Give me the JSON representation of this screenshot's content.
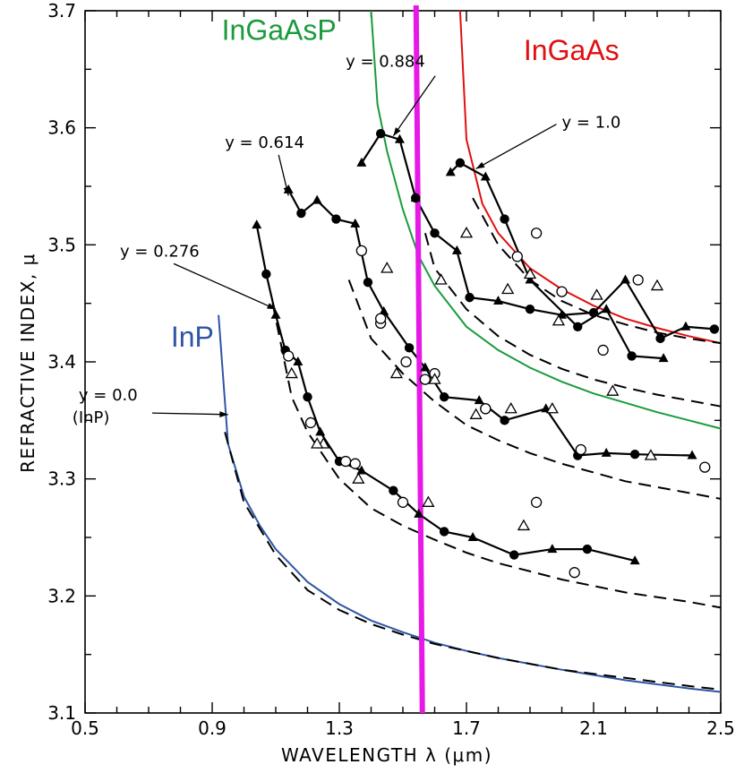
{
  "chart_data": {
    "type": "line",
    "xlabel": "WAVELENGTH λ (μm)",
    "ylabel": "REFRACTIVE INDEX, μ",
    "xlim": [
      0.5,
      2.5
    ],
    "ylim": [
      3.1,
      3.7
    ],
    "x_ticks": [
      "0.5",
      "0.9",
      "1.3",
      "1.7",
      "2.1",
      "2.5"
    ],
    "y_ticks": [
      "3.1",
      "3.2",
      "3.3",
      "3.4",
      "3.5",
      "3.6",
      "3.7"
    ],
    "grid": false,
    "colored_labels": [
      {
        "text": "InGaAsP",
        "color": "#1a9b3c"
      },
      {
        "text": "InGaAs",
        "color": "#e01010"
      },
      {
        "text": "InP",
        "color": "#2f55a4"
      }
    ],
    "annotations": [
      {
        "text": "y = 0.884",
        "x": 1.32,
        "y": 3.652
      },
      {
        "text": "y = 1.0",
        "x": 2.0,
        "y": 3.6
      },
      {
        "text": "y = 0.614",
        "x": 0.94,
        "y": 3.583
      },
      {
        "text": "y = 0.276",
        "x": 0.61,
        "y": 3.49
      },
      {
        "text": "y = 0.0",
        "x": 0.48,
        "y": 3.367
      },
      {
        "text": "(InP)",
        "x": 0.46,
        "y": 3.348
      }
    ],
    "vertical_marker": {
      "x": 1.55,
      "color": "#e619e6"
    },
    "series": [
      {
        "name": "InGaAs",
        "style": "solid",
        "color": "#e01010",
        "x": [
          1.68,
          1.7,
          1.75,
          1.8,
          1.9,
          2.0,
          2.1,
          2.2,
          2.3,
          2.4,
          2.5
        ],
        "y": [
          3.7,
          3.59,
          3.535,
          3.51,
          3.48,
          3.462,
          3.448,
          3.437,
          3.429,
          3.422,
          3.416
        ]
      },
      {
        "name": "InGaAsP",
        "style": "solid",
        "color": "#1a9b3c",
        "x": [
          1.4,
          1.42,
          1.45,
          1.5,
          1.55,
          1.6,
          1.7,
          1.8,
          1.9,
          2.0,
          2.1,
          2.2,
          2.3,
          2.4,
          2.5
        ],
        "y": [
          3.7,
          3.62,
          3.58,
          3.53,
          3.49,
          3.465,
          3.43,
          3.41,
          3.395,
          3.383,
          3.373,
          3.365,
          3.357,
          3.35,
          3.343
        ]
      },
      {
        "name": "InP",
        "style": "solid",
        "color": "#2f55a4",
        "x": [
          0.92,
          0.95,
          1.0,
          1.05,
          1.1,
          1.2,
          1.3,
          1.4,
          1.5,
          1.6,
          1.7,
          1.8,
          2.0,
          2.2,
          2.4,
          2.5
        ],
        "y": [
          3.44,
          3.33,
          3.285,
          3.26,
          3.24,
          3.212,
          3.193,
          3.179,
          3.169,
          3.16,
          3.153,
          3.147,
          3.137,
          3.128,
          3.121,
          3.118
        ]
      },
      {
        "name": "dashed y=0.0",
        "style": "dashed",
        "color": "#000000",
        "x": [
          0.94,
          1.0,
          1.1,
          1.2,
          1.3,
          1.4,
          1.5,
          1.6,
          1.8,
          2.0,
          2.2,
          2.4,
          2.5
        ],
        "y": [
          3.34,
          3.28,
          3.235,
          3.205,
          3.188,
          3.176,
          3.167,
          3.159,
          3.147,
          3.137,
          3.13,
          3.123,
          3.12
        ]
      },
      {
        "name": "dashed y=0.276",
        "style": "dashed",
        "color": "#000000",
        "x": [
          1.09,
          1.15,
          1.2,
          1.3,
          1.4,
          1.5,
          1.6,
          1.7,
          1.8,
          2.0,
          2.2,
          2.4,
          2.5
        ],
        "y": [
          3.45,
          3.37,
          3.34,
          3.3,
          3.275,
          3.26,
          3.248,
          3.237,
          3.228,
          3.214,
          3.203,
          3.195,
          3.19
        ]
      },
      {
        "name": "dashed y=0.614",
        "style": "dashed",
        "color": "#000000",
        "x": [
          1.33,
          1.4,
          1.5,
          1.6,
          1.7,
          1.8,
          1.9,
          2.0,
          2.2,
          2.4,
          2.5
        ],
        "y": [
          3.47,
          3.42,
          3.39,
          3.366,
          3.346,
          3.333,
          3.322,
          3.313,
          3.298,
          3.288,
          3.283
        ]
      },
      {
        "name": "dashed y=0.884",
        "style": "dashed",
        "color": "#000000",
        "x": [
          1.57,
          1.6,
          1.7,
          1.8,
          1.9,
          2.0,
          2.1,
          2.2,
          2.3,
          2.4,
          2.5
        ],
        "y": [
          3.51,
          3.48,
          3.445,
          3.422,
          3.406,
          3.394,
          3.385,
          3.378,
          3.372,
          3.367,
          3.362
        ]
      },
      {
        "name": "dashed y=1.0",
        "style": "dashed",
        "color": "#000000",
        "x": [
          1.72,
          1.8,
          1.9,
          2.0,
          2.1,
          2.2,
          2.3,
          2.4,
          2.5
        ],
        "y": [
          3.54,
          3.5,
          3.47,
          3.452,
          3.44,
          3.432,
          3.425,
          3.42,
          3.416
        ]
      },
      {
        "name": "y = 0.884 data",
        "style": "marker-line",
        "marker": "filled-triangle",
        "color": "#000000",
        "x": [
          1.37,
          1.43,
          1.49,
          1.54
        ],
        "y": [
          3.57,
          3.595,
          3.59,
          3.54
        ]
      },
      {
        "name": "y = 0.884 data (2)",
        "style": "marker-line",
        "marker": "filled-triangle",
        "color": "#000000",
        "x": [
          1.54,
          1.6,
          1.67,
          1.71,
          1.8,
          1.9,
          2.0,
          2.1,
          2.2,
          2.31,
          2.39,
          2.48
        ],
        "y": [
          3.54,
          3.51,
          3.495,
          3.455,
          3.452,
          3.445,
          3.44,
          3.442,
          3.47,
          3.42,
          3.43,
          3.428
        ]
      },
      {
        "name": "y = 1.0 data",
        "style": "marker-line",
        "marker": "filled-triangle",
        "color": "#000000",
        "x": [
          1.65,
          1.68,
          1.76,
          1.82,
          1.9,
          2.05,
          2.14,
          2.22,
          2.32
        ],
        "y": [
          3.562,
          3.57,
          3.558,
          3.522,
          3.47,
          3.43,
          3.445,
          3.405,
          3.403
        ]
      },
      {
        "name": "y = 0.614 data",
        "style": "marker-line",
        "marker": "filled-triangle",
        "color": "#000000",
        "x": [
          1.14,
          1.18,
          1.23,
          1.29,
          1.35,
          1.39,
          1.44,
          1.52,
          1.57,
          1.63,
          1.74,
          1.82,
          1.95,
          2.05,
          2.14,
          2.23,
          2.41
        ],
        "y": [
          3.547,
          3.527,
          3.538,
          3.522,
          3.518,
          3.468,
          3.443,
          3.412,
          3.395,
          3.37,
          3.367,
          3.35,
          3.36,
          3.32,
          3.322,
          3.321,
          3.32
        ]
      },
      {
        "name": "y = 0.276 data",
        "style": "marker-line",
        "marker": "filled-triangle",
        "color": "#000000",
        "x": [
          1.04,
          1.07,
          1.1,
          1.13,
          1.17,
          1.2,
          1.24,
          1.3,
          1.37,
          1.47,
          1.55,
          1.63,
          1.72,
          1.85,
          1.97,
          2.08,
          2.23
        ],
        "y": [
          3.517,
          3.475,
          3.44,
          3.41,
          3.4,
          3.37,
          3.34,
          3.315,
          3.307,
          3.29,
          3.27,
          3.255,
          3.25,
          3.235,
          3.24,
          3.24,
          3.23
        ]
      },
      {
        "name": "open circles",
        "style": "markers",
        "marker": "open-circle",
        "color": "#000000",
        "x": [
          1.37,
          1.43,
          1.51,
          1.6,
          1.76,
          1.86,
          2.0,
          2.13,
          2.24,
          1.14,
          1.32,
          1.43,
          1.57,
          1.76,
          1.92,
          2.06,
          2.45,
          1.21,
          1.35,
          1.5,
          1.92,
          2.04
        ],
        "y": [
          3.495,
          3.433,
          3.4,
          3.39,
          3.36,
          3.49,
          3.46,
          3.41,
          3.47,
          3.405,
          3.315,
          3.437,
          3.385,
          3.36,
          3.51,
          3.325,
          3.31,
          3.348,
          3.313,
          3.28,
          3.28,
          3.22
        ]
      },
      {
        "name": "open triangles",
        "style": "markers",
        "marker": "open-triangle",
        "color": "#000000",
        "x": [
          1.45,
          1.62,
          1.7,
          1.83,
          1.9,
          1.99,
          2.11,
          2.16,
          2.3,
          1.15,
          1.25,
          1.48,
          1.6,
          1.73,
          1.84,
          1.97,
          2.28,
          1.23,
          1.36,
          1.58,
          1.88
        ],
        "y": [
          3.48,
          3.47,
          3.51,
          3.462,
          3.475,
          3.435,
          3.457,
          3.375,
          3.465,
          3.39,
          3.33,
          3.39,
          3.385,
          3.355,
          3.36,
          3.36,
          3.32,
          3.33,
          3.3,
          3.28,
          3.26
        ]
      }
    ]
  }
}
